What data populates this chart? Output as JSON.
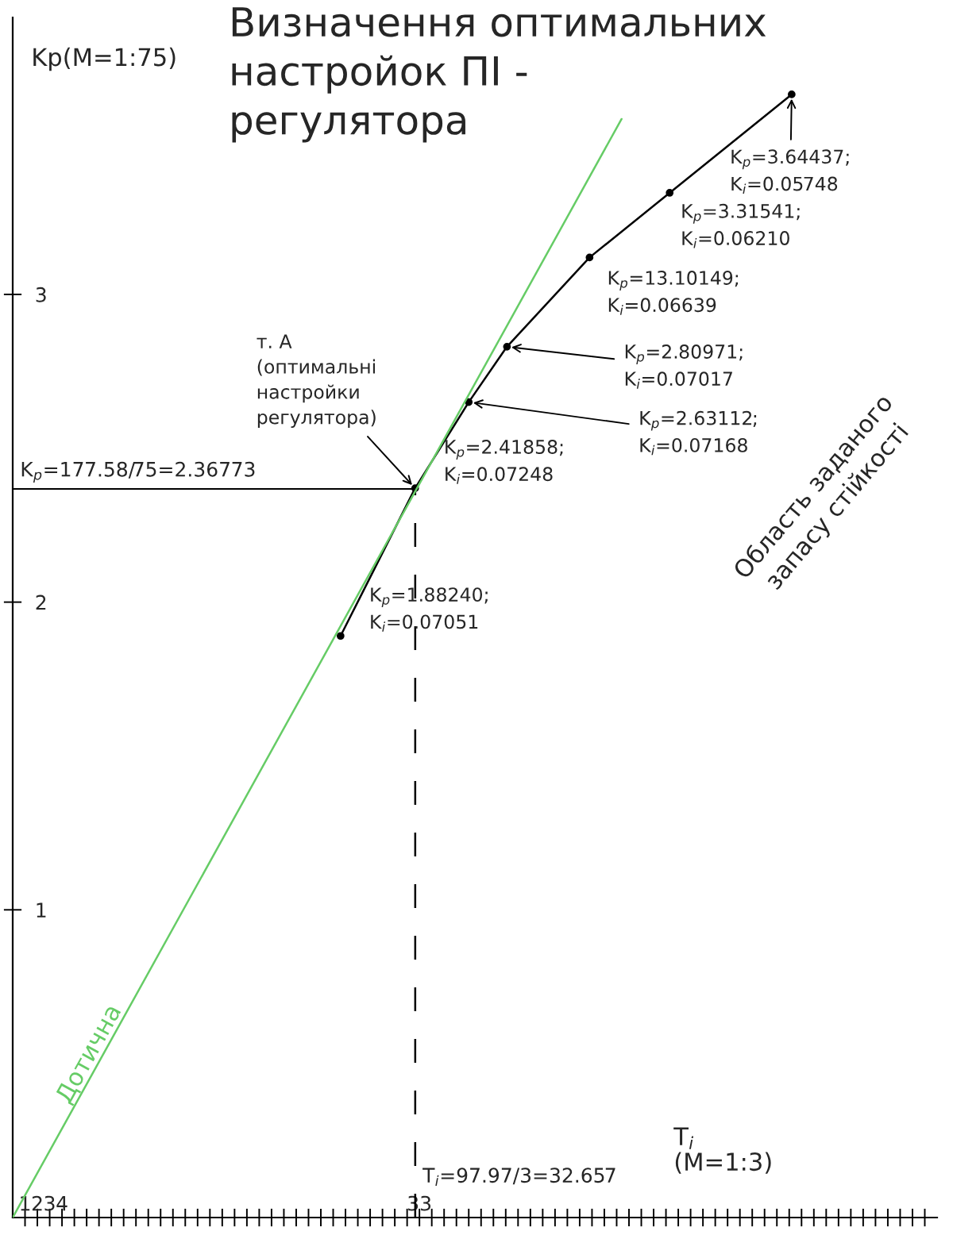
{
  "chart_data": {
    "type": "line",
    "title": "Визначення оптимальних\nнастройок ПІ -\nрегулятора",
    "ylabel": "Kp(M=1:75)",
    "xlabel": "T$_{i}$\n(M=1:3)",
    "xlim": [
      0,
      75
    ],
    "ylim": [
      0,
      3.9
    ],
    "yticks": [
      1,
      2,
      3
    ],
    "xticks": [
      1,
      2,
      3,
      4,
      {
        "value": 5,
        "label": null
      },
      {
        "value": 6,
        "label": null
      },
      {
        "value": 7,
        "label": null
      },
      {
        "value": 8,
        "label": null
      },
      {
        "value": 9,
        "label": null
      },
      {
        "value": 10,
        "label": null
      },
      {
        "value": 11,
        "label": null
      },
      {
        "value": 12,
        "label": null
      },
      {
        "value": 13,
        "label": null
      },
      {
        "value": 14,
        "label": null
      },
      {
        "value": 15,
        "label": null
      },
      {
        "value": 16,
        "label": null
      },
      {
        "value": 17,
        "label": null
      },
      {
        "value": 18,
        "label": null
      },
      {
        "value": 19,
        "label": null
      },
      {
        "value": 20,
        "label": null
      },
      {
        "value": 21,
        "label": null
      },
      {
        "value": 22,
        "label": null
      },
      {
        "value": 23,
        "label": null
      },
      {
        "value": 24,
        "label": null
      },
      {
        "value": 25,
        "label": null
      },
      {
        "value": 26,
        "label": null
      },
      {
        "value": 27,
        "label": null
      },
      {
        "value": 28,
        "label": null
      },
      {
        "value": 29,
        "label": null
      },
      {
        "value": 30,
        "label": null
      },
      {
        "value": 31,
        "label": null
      },
      {
        "value": 32,
        "label": null
      },
      33,
      {
        "value": 34,
        "label": null
      },
      {
        "value": 35,
        "label": null
      },
      {
        "value": 36,
        "label": null
      },
      {
        "value": 37,
        "label": null
      },
      {
        "value": 38,
        "label": null
      },
      {
        "value": 39,
        "label": null
      },
      {
        "value": 40,
        "label": null
      },
      {
        "value": 41,
        "label": null
      },
      {
        "value": 42,
        "label": null
      },
      {
        "value": 43,
        "label": null
      },
      {
        "value": 44,
        "label": null
      },
      {
        "value": 45,
        "label": null
      },
      {
        "value": 46,
        "label": null
      },
      {
        "value": 47,
        "label": null
      },
      {
        "value": 48,
        "label": null
      },
      {
        "value": 49,
        "label": null
      },
      {
        "value": 50,
        "label": null
      },
      {
        "value": 51,
        "label": null
      },
      {
        "value": 52,
        "label": null
      },
      {
        "value": 53,
        "label": null
      },
      {
        "value": 54,
        "label": null
      },
      {
        "value": 55,
        "label": null
      },
      {
        "value": 56,
        "label": null
      },
      {
        "value": 57,
        "label": null
      },
      {
        "value": 58,
        "label": null
      },
      {
        "value": 59,
        "label": null
      },
      {
        "value": 60,
        "label": null
      },
      {
        "value": 61,
        "label": null
      },
      {
        "value": 62,
        "label": null
      },
      {
        "value": 63,
        "label": null
      },
      {
        "value": 64,
        "label": null
      },
      {
        "value": 65,
        "label": null
      },
      {
        "value": 66,
        "label": null
      },
      {
        "value": 67,
        "label": null
      },
      {
        "value": 68,
        "label": null
      },
      {
        "value": 69,
        "label": null
      },
      {
        "value": 70,
        "label": null
      },
      {
        "value": 71,
        "label": null
      },
      {
        "value": 72,
        "label": null
      },
      {
        "value": 73,
        "label": null
      },
      {
        "value": 74,
        "label": null
      }
    ],
    "series": [
      {
        "color": "#000000",
        "marker": "circle",
        "x": [
          26.6,
          32.65,
          37.0,
          40.1,
          46.8,
          53.3,
          63.2
        ],
        "values": [
          1.89,
          2.37,
          2.65,
          2.83,
          3.12,
          3.33,
          3.65
        ]
      },
      {
        "name": "Дотична",
        "color": "#66cc66",
        "marker": "none",
        "x": [
          0,
          49.4
        ],
        "values": [
          0,
          3.57
        ]
      }
    ],
    "ref_lines": [
      {
        "axis": "y",
        "value": 2.36773,
        "label": "K$_{p}$=177.58/75=2.36773",
        "color": "#000000",
        "line_style": "solid"
      },
      {
        "axis": "x",
        "value": 32.657,
        "label": "T$_{i}$=97.97/3=32.657",
        "color": "#000000",
        "line_style": "dashed"
      }
    ],
    "annotations": [
      {
        "text": "K$_{p}$=3.64437;\nK$_{i}$=0.05748",
        "x": 63.2,
        "y": 3.65
      },
      {
        "text": "K$_{p}$=3.31541;\nK$_{i}$=0.06210",
        "x": 53.3,
        "y": 3.33
      },
      {
        "text": "K$_{p}$=13.10149;\nK$_{i}$=0.06639",
        "x": 46.8,
        "y": 3.12
      },
      {
        "text": "K$_{p}$=2.80971;\nK$_{i}$=0.07017",
        "x": 40.1,
        "y": 2.83
      },
      {
        "text": "K$_{p}$=2.63112;\nK$_{i}$=0.07168",
        "x": 37.0,
        "y": 2.65
      },
      {
        "text": "K$_{p}$=2.41858;\nK$_{i}$=0.07248",
        "x": 32.65,
        "y": 2.37
      },
      {
        "text": "т. А\n(оптимальні\nнастройки\nрегулятора)",
        "x": 32.65,
        "y": 2.37
      },
      {
        "text": "K$_{p}$=1.88240;\nK$_{i}$=0.07051",
        "x": 26.6,
        "y": 1.89
      },
      "Область заданого\nзапасу стійкості"
    ],
    "grid": false,
    "legend": false
  }
}
